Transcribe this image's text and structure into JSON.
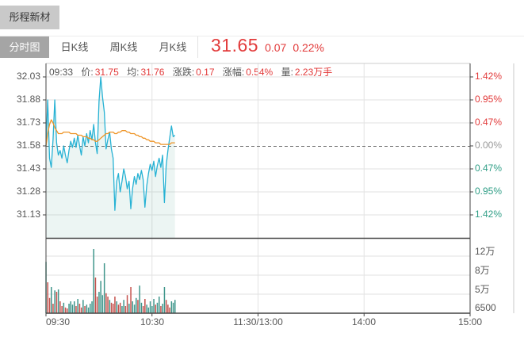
{
  "title_bar": {
    "stock_name": "彤程新材"
  },
  "tabs": [
    {
      "label": "分时图",
      "selected": true
    },
    {
      "label": "日K线",
      "selected": false
    },
    {
      "label": "周K线",
      "selected": false
    },
    {
      "label": "月K线",
      "selected": false
    }
  ],
  "quote": {
    "price": "31.65",
    "change": "0.07",
    "change_pct": "0.22%"
  },
  "info_bar": {
    "time": "09:33",
    "segments": [
      {
        "label": "价:",
        "value": "31.75"
      },
      {
        "label": "均:",
        "value": "31.76"
      },
      {
        "label": "涨跌:",
        "value": "0.17"
      },
      {
        "label": "涨幅:",
        "value": "0.54%"
      },
      {
        "label": "量:",
        "value": "2.23万手"
      }
    ]
  },
  "colors": {
    "price_line": "#27b2d4",
    "avg_line": "#ee9426",
    "area_fill": "rgba(64,158,138,0.10)",
    "vol_up": "#3f968b",
    "vol_down": "#c4524d",
    "red_text": "#e23a3a",
    "green_text": "#2f9e86",
    "neutral_text": "#999999",
    "grid": "#e2e2e2",
    "border_dark": "#444444",
    "dashed": "#666666"
  },
  "chart_data": {
    "type": "line",
    "title": "分时图 intraday price/volume",
    "prev_close": 31.58,
    "session_minutes": 240,
    "y_axis_left": [
      "32.03",
      "31.88",
      "31.73",
      "31.58",
      "31.43",
      "31.28",
      "31.13"
    ],
    "y_axis_right": [
      {
        "label": "1.42%",
        "tone": "red"
      },
      {
        "label": "0.95%",
        "tone": "red"
      },
      {
        "label": "0.47%",
        "tone": "red"
      },
      {
        "label": "0.00%",
        "tone": "neutral"
      },
      {
        "label": "0.47%",
        "tone": "green"
      },
      {
        "label": "0.95%",
        "tone": "green"
      },
      {
        "label": "1.42%",
        "tone": "green"
      }
    ],
    "volume_axis": [
      "12万",
      "8万",
      "5万",
      "6500"
    ],
    "x_axis": [
      "09:30",
      "10:30",
      "11:30/13:00",
      "14:00",
      "15:00"
    ],
    "ylim": [
      31.13,
      32.03
    ],
    "price": [
      31.58,
      31.88,
      31.5,
      31.44,
      31.62,
      31.88,
      31.6,
      31.52,
      31.55,
      31.5,
      31.58,
      31.52,
      31.47,
      31.55,
      31.61,
      31.57,
      31.63,
      31.57,
      31.65,
      31.58,
      31.52,
      31.64,
      31.58,
      31.66,
      31.6,
      31.68,
      31.62,
      31.72,
      31.6,
      31.53,
      31.87,
      32.03,
      31.9,
      31.8,
      31.56,
      31.62,
      31.67,
      31.56,
      31.5,
      31.16,
      31.35,
      31.4,
      31.28,
      31.35,
      31.43,
      31.38,
      31.3,
      31.35,
      31.17,
      31.3,
      31.38,
      31.33,
      31.4,
      31.36,
      31.42,
      31.36,
      31.18,
      31.32,
      31.4,
      31.46,
      31.42,
      31.48,
      31.38,
      31.45,
      31.5,
      31.44,
      31.52,
      31.21,
      31.45,
      31.55,
      31.63,
      31.71,
      31.64,
      31.65
    ],
    "avg": [
      31.58,
      31.66,
      31.72,
      31.75,
      31.73,
      31.7,
      31.68,
      31.66,
      31.66,
      31.66,
      31.67,
      31.67,
      31.67,
      31.67,
      31.66,
      31.66,
      31.66,
      31.66,
      31.65,
      31.65,
      31.65,
      31.64,
      31.64,
      31.64,
      31.63,
      31.63,
      31.62,
      31.62,
      31.61,
      31.61,
      31.62,
      31.63,
      31.64,
      31.65,
      31.66,
      31.66,
      31.67,
      31.67,
      31.67,
      31.66,
      31.66,
      31.67,
      31.67,
      31.68,
      31.68,
      31.68,
      31.67,
      31.67,
      31.66,
      31.66,
      31.66,
      31.65,
      31.65,
      31.64,
      31.64,
      31.63,
      31.63,
      31.62,
      31.62,
      31.61,
      31.61,
      31.61,
      31.6,
      31.6,
      31.6,
      31.59,
      31.59,
      31.59,
      31.59,
      31.59,
      31.59,
      31.6,
      31.6,
      31.6
    ],
    "volume_wan": [
      10.8,
      6.5,
      3.2,
      5.5,
      2.0,
      4.8,
      4.5,
      5.0,
      2.5,
      1.5,
      2.2,
      1.2,
      1.0,
      2.0,
      2.5,
      1.8,
      2.5,
      1.5,
      3.0,
      2.0,
      1.2,
      2.8,
      1.5,
      1.8,
      1.2,
      2.0,
      2.5,
      13.5,
      7.5,
      3.5,
      4.5,
      6.8,
      3.8,
      10.5,
      4.2,
      3.5,
      2.8,
      2.2,
      2.0,
      3.5,
      2.5,
      1.8,
      2.2,
      1.5,
      2.8,
      1.5,
      3.8,
      2.0,
      5.5,
      2.5,
      1.8,
      3.2,
      2.8,
      5.8,
      2.2,
      1.5,
      3.0,
      1.8,
      1.2,
      2.5,
      1.5,
      3.0,
      1.8,
      2.2,
      3.5,
      1.5,
      2.0,
      5.5,
      2.8,
      1.8,
      1.2,
      2.5,
      2.2,
      2.8
    ],
    "volume_dir": [
      "g",
      "r",
      "r",
      "g",
      "r",
      "g",
      "r",
      "g",
      "r",
      "r",
      "g",
      "r",
      "r",
      "g",
      "g",
      "g",
      "g",
      "r",
      "g",
      "r",
      "r",
      "g",
      "r",
      "g",
      "g",
      "g",
      "g",
      "g",
      "r",
      "r",
      "g",
      "g",
      "g",
      "g",
      "r",
      "r",
      "g",
      "r",
      "r",
      "r",
      "g",
      "r",
      "r",
      "g",
      "g",
      "r",
      "r",
      "g",
      "r",
      "g",
      "g",
      "g",
      "r",
      "g",
      "g",
      "r",
      "r",
      "g",
      "g",
      "g",
      "g",
      "g",
      "r",
      "g",
      "g",
      "r",
      "g",
      "g",
      "r",
      "r",
      "r",
      "g",
      "g",
      "g"
    ]
  }
}
